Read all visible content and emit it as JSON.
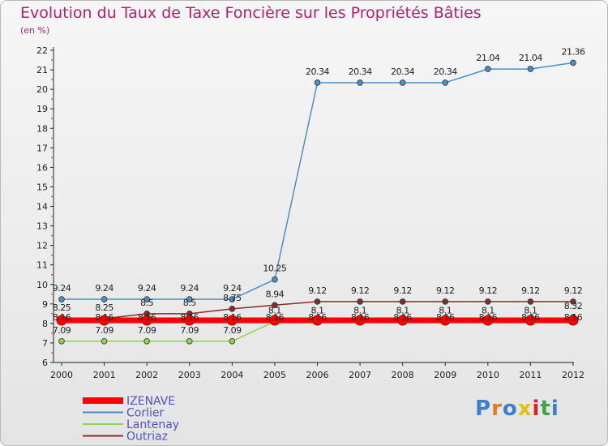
{
  "chart_data": {
    "type": "line",
    "title": "Evolution du Taux de Taxe Foncière sur les Propriétés Bâties",
    "subtitle": "(en %)",
    "x": [
      "2000",
      "2001",
      "2002",
      "2003",
      "2004",
      "2005",
      "2006",
      "2007",
      "2008",
      "2009",
      "2010",
      "2011",
      "2012"
    ],
    "ylim": [
      6,
      22
    ],
    "yticks": [
      6,
      7,
      8,
      9,
      10,
      11,
      12,
      13,
      14,
      15,
      16,
      17,
      18,
      19,
      20,
      21,
      22
    ],
    "grid": false,
    "legend_position": "bottom-left",
    "series": [
      {
        "name": "IZENAVE",
        "color": "#ff0000",
        "values": [
          8.16,
          8.16,
          8.16,
          8.16,
          8.16,
          8.16,
          8.16,
          8.16,
          8.16,
          8.16,
          8.16,
          8.16,
          8.16
        ],
        "labels": [
          "8.16",
          "8.16",
          "8.16",
          "8.16",
          "8.16",
          "8.16",
          "8.16",
          "8.16",
          "8.16",
          "8.16",
          "8.16",
          "8.16",
          "8.16"
        ]
      },
      {
        "name": "Corlier",
        "color": "#4a90c8",
        "values": [
          9.24,
          9.24,
          9.24,
          9.24,
          9.24,
          10.25,
          20.34,
          20.34,
          20.34,
          20.34,
          21.04,
          21.04,
          21.36
        ],
        "labels": [
          "9.24",
          "9.24",
          "9.24",
          "9.24",
          "9.24",
          "10.25",
          "20.34",
          "20.34",
          "20.34",
          "20.34",
          "21.04",
          "21.04",
          "21.36"
        ]
      },
      {
        "name": "Lantenay",
        "color": "#8fd44a",
        "values": [
          7.09,
          7.09,
          7.09,
          7.09,
          7.09,
          8.1,
          8.1,
          8.1,
          8.1,
          8.1,
          8.1,
          8.1,
          8.32
        ],
        "labels": [
          "7.09",
          "7.09",
          "7.09",
          "7.09",
          "7.09",
          "8.1",
          "8.1",
          "8.1",
          "8.1",
          "8.1",
          "8.1",
          "8.1",
          "8.32"
        ]
      },
      {
        "name": "Outriaz",
        "color": "#8b2a2a",
        "values": [
          8.25,
          8.25,
          8.5,
          8.5,
          8.75,
          8.94,
          9.12,
          9.12,
          9.12,
          9.12,
          9.12,
          9.12,
          9.12
        ],
        "labels": [
          "8.25",
          "8.25",
          "8.5",
          "8.5",
          "8.75",
          "8.94",
          "9.12",
          "9.12",
          "9.12",
          "9.12",
          "9.12",
          "9.12",
          "9.12"
        ]
      }
    ]
  },
  "branding": {
    "logo_text": "Proxiti",
    "logo_colors": [
      "#3a7fd0",
      "#e87a1c",
      "#3a7fd0",
      "#e2c20f",
      "#d8222b",
      "#3aa844",
      "#3a7fd0"
    ]
  }
}
